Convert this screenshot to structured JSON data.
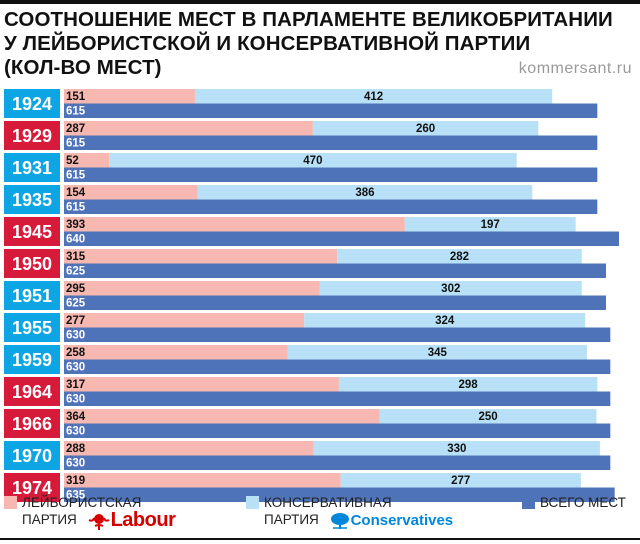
{
  "title_lines": [
    "СООТНОШЕНИЕ МЕСТ В ПАРЛАМЕНТЕ ВЕЛИКОБРИТАНИИ",
    "У ЛЕЙБОРИСТСКОЙ И КОНСЕРВАТИВНОЙ ПАРТИИ",
    "(КОЛ-ВО МЕСТ)"
  ],
  "source": "kommersant.ru",
  "colors": {
    "labour": "#f6b8b0",
    "conservative": "#b8e0f6",
    "total": "#4f73b8",
    "labour_year_bg": "#d7193a",
    "conservative_year_bg": "#0ea5e4"
  },
  "legend": {
    "labour_line1": "ЛЕЙБОРИСТСКАЯ",
    "labour_line2": "ПАРТИЯ",
    "labour_logo": "Labour",
    "conservative_line1": "КОНСЕРВАТИВНАЯ",
    "conservative_line2": "ПАРТИЯ",
    "conservative_logo": "Conservatives",
    "total": "ВСЕГО МЕСТ"
  },
  "chart_data": {
    "type": "bar",
    "title": "СООТНОШЕНИЕ МЕСТ В ПАРЛАМЕНТЕ ВЕЛИКОБРИТАНИИ У ЛЕЙБОРИСТСКОЙ И КОНСЕРВАТИВНОЙ ПАРТИИ (КОЛ-ВО МЕСТ)",
    "categories": [
      "1924",
      "1929",
      "1931",
      "1935",
      "1945",
      "1950",
      "1951",
      "1955",
      "1959",
      "1964",
      "1966",
      "1970",
      "1974"
    ],
    "winner": [
      "conservative",
      "labour",
      "conservative",
      "conservative",
      "labour",
      "labour",
      "conservative",
      "conservative",
      "conservative",
      "labour",
      "labour",
      "conservative",
      "labour"
    ],
    "series": [
      {
        "name": "ЛЕЙБОРИСТСКАЯ ПАРТИЯ",
        "key": "labour",
        "values": [
          151,
          287,
          52,
          154,
          393,
          315,
          295,
          277,
          258,
          317,
          364,
          288,
          319
        ]
      },
      {
        "name": "КОНСЕРВАТИВНАЯ ПАРТИЯ",
        "key": "conservative",
        "values": [
          412,
          260,
          470,
          386,
          197,
          282,
          302,
          324,
          345,
          298,
          250,
          330,
          277
        ]
      },
      {
        "name": "ВСЕГО МЕСТ",
        "key": "total",
        "values": [
          615,
          615,
          615,
          615,
          640,
          625,
          625,
          630,
          630,
          630,
          630,
          630,
          635
        ]
      }
    ],
    "xlim": [
      0,
      640
    ]
  }
}
